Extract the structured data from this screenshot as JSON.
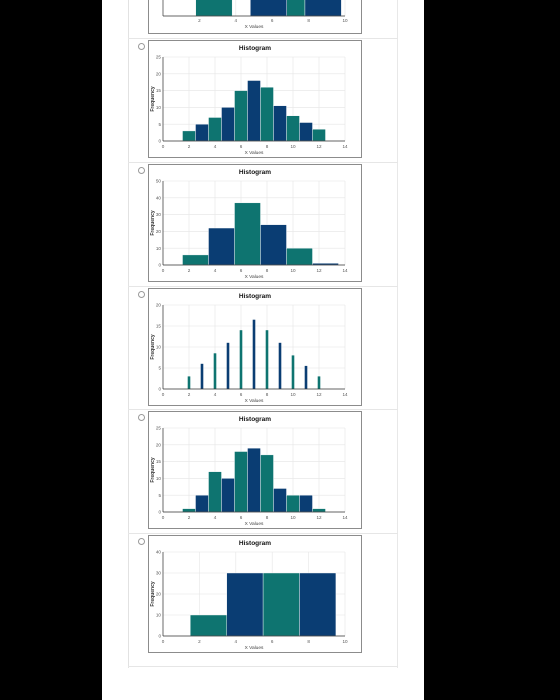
{
  "colors": {
    "navy": "#0a3d73",
    "teal": "#0e7470",
    "grid": "#e5e5e5",
    "axis": "#333333"
  },
  "options": [
    {
      "type": "partial-bar",
      "ticks": [
        2,
        4,
        6,
        8,
        10
      ],
      "xlabel": "X Values",
      "xlim": [
        0,
        10
      ],
      "bars": [
        {
          "x0": 1.8,
          "x1": 3.8,
          "color": "teal"
        },
        {
          "x0": 4.8,
          "x1": 6.8,
          "color": "navy"
        },
        {
          "x0": 6.8,
          "x1": 7.8,
          "color": "teal"
        },
        {
          "x0": 7.8,
          "x1": 9.8,
          "color": "navy"
        }
      ]
    },
    {
      "chart_data": {
        "type": "bar",
        "title": "Histogram",
        "xlabel": "X Values",
        "ylabel": "Frequency",
        "xlim": [
          0,
          14
        ],
        "ylim": [
          0,
          25
        ],
        "xticks": [
          0,
          2,
          4,
          6,
          8,
          10,
          12,
          14
        ],
        "yticks": [
          0,
          5,
          10,
          15,
          20,
          25
        ],
        "grid": true,
        "bin_width": 1,
        "bars": [
          {
            "x": 2,
            "value": 3
          },
          {
            "x": 3,
            "value": 5
          },
          {
            "x": 4,
            "value": 7
          },
          {
            "x": 5,
            "value": 10
          },
          {
            "x": 6,
            "value": 15
          },
          {
            "x": 7,
            "value": 18
          },
          {
            "x": 8,
            "value": 16
          },
          {
            "x": 9,
            "value": 10.5
          },
          {
            "x": 10,
            "value": 7.5
          },
          {
            "x": 11,
            "value": 5.5
          },
          {
            "x": 12,
            "value": 3.5
          }
        ]
      }
    },
    {
      "chart_data": {
        "type": "bar",
        "title": "Histogram",
        "xlabel": "X Values",
        "ylabel": "Frequency",
        "xlim": [
          0,
          14
        ],
        "ylim": [
          0,
          50
        ],
        "xticks": [
          0,
          2,
          4,
          6,
          8,
          10,
          12,
          14
        ],
        "yticks": [
          0,
          10,
          20,
          30,
          40,
          50
        ],
        "grid": true,
        "bin_width": 2,
        "bars": [
          {
            "x": 2.5,
            "value": 6
          },
          {
            "x": 4.5,
            "value": 22
          },
          {
            "x": 6.5,
            "value": 37
          },
          {
            "x": 8.5,
            "value": 24
          },
          {
            "x": 10.5,
            "value": 10
          },
          {
            "x": 12.5,
            "value": 1
          }
        ]
      }
    },
    {
      "chart_data": {
        "type": "bar",
        "title": "Histogram",
        "xlabel": "X Values",
        "ylabel": "Frequency",
        "xlim": [
          0,
          14
        ],
        "ylim": [
          0,
          20
        ],
        "xticks": [
          0,
          2,
          4,
          6,
          8,
          10,
          12,
          14
        ],
        "yticks": [
          0,
          5,
          10,
          15,
          20
        ],
        "grid": true,
        "bin_width": 0.2,
        "bars": [
          {
            "x": 2,
            "value": 3
          },
          {
            "x": 3,
            "value": 6
          },
          {
            "x": 4,
            "value": 8.5
          },
          {
            "x": 5,
            "value": 11
          },
          {
            "x": 6,
            "value": 14
          },
          {
            "x": 7,
            "value": 16.5
          },
          {
            "x": 8,
            "value": 14
          },
          {
            "x": 9,
            "value": 11
          },
          {
            "x": 10,
            "value": 8
          },
          {
            "x": 11,
            "value": 5.5
          },
          {
            "x": 12,
            "value": 3
          }
        ]
      }
    },
    {
      "chart_data": {
        "type": "bar",
        "title": "Histogram",
        "xlabel": "X Values",
        "ylabel": "Frequency",
        "xlim": [
          0,
          14
        ],
        "ylim": [
          0,
          25
        ],
        "xticks": [
          0,
          2,
          4,
          6,
          8,
          10,
          12,
          14
        ],
        "yticks": [
          0,
          5,
          10,
          15,
          20,
          25
        ],
        "grid": true,
        "bin_width": 1,
        "bars": [
          {
            "x": 2,
            "value": 1
          },
          {
            "x": 3,
            "value": 5
          },
          {
            "x": 4,
            "value": 12
          },
          {
            "x": 5,
            "value": 10
          },
          {
            "x": 6,
            "value": 18
          },
          {
            "x": 7,
            "value": 19
          },
          {
            "x": 8,
            "value": 17
          },
          {
            "x": 9,
            "value": 7
          },
          {
            "x": 10,
            "value": 5
          },
          {
            "x": 11,
            "value": 5
          },
          {
            "x": 12,
            "value": 1
          }
        ]
      }
    },
    {
      "chart_data": {
        "type": "bar",
        "title": "Histogram",
        "xlabel": "X Values",
        "ylabel": "Frequency",
        "xlim": [
          0,
          10
        ],
        "ylim": [
          0,
          40
        ],
        "xticks": [
          0,
          2,
          4,
          6,
          8,
          10
        ],
        "yticks": [
          0,
          10,
          20,
          30,
          40
        ],
        "grid": true,
        "bin_width": 2,
        "bars": [
          {
            "x": 2.5,
            "value": 10
          },
          {
            "x": 4.5,
            "value": 30
          },
          {
            "x": 6.5,
            "value": 30
          },
          {
            "x": 8.5,
            "value": 30
          }
        ]
      }
    }
  ]
}
